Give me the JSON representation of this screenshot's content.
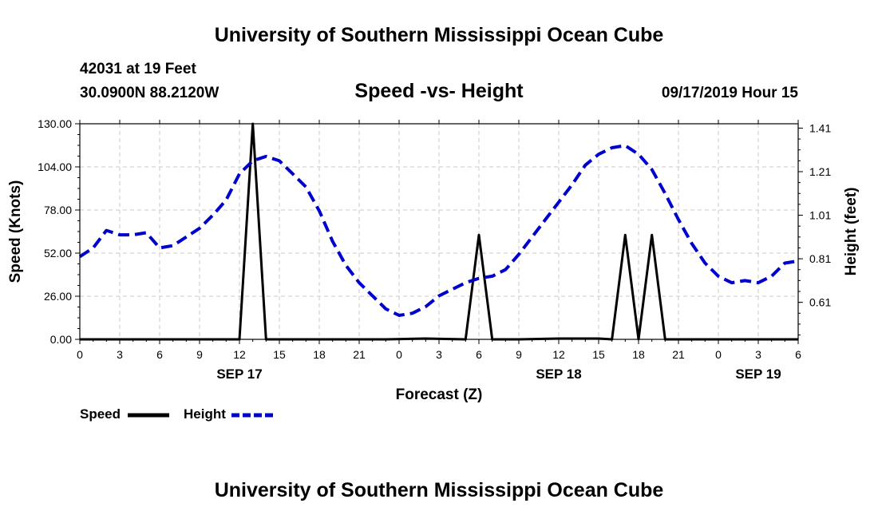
{
  "header": {
    "title": "University of Southern Mississippi Ocean Cube",
    "station": "42031 at 19 Feet",
    "location": "30.0900N 88.2120W",
    "chart_title": "Speed -vs- Height",
    "datetime": "09/17/2019 Hour 15"
  },
  "footer": {
    "title": "University of Southern Mississippi Ocean Cube"
  },
  "legend": {
    "speed_label": "Speed",
    "height_label": "Height"
  },
  "colors": {
    "speed": "#000000",
    "height": "#0000cc",
    "grid": "#c8c8c8"
  },
  "chart_data": {
    "type": "line",
    "title": "Speed -vs- Height",
    "xlabel": "Forecast (Z)",
    "ylabel": "Speed (Knots)",
    "y2label": "Height (feet)",
    "xlim": [
      0,
      54
    ],
    "ylim": [
      0,
      130
    ],
    "y2lim": [
      0.44,
      1.43
    ],
    "x_ticks": [
      0,
      3,
      6,
      9,
      12,
      15,
      18,
      21,
      24,
      27,
      30,
      33,
      36,
      39,
      42,
      45,
      48,
      51,
      54
    ],
    "x_tick_labels": [
      "0",
      "3",
      "6",
      "9",
      "12",
      "15",
      "18",
      "21",
      "0",
      "3",
      "6",
      "9",
      "12",
      "15",
      "18",
      "21",
      "0",
      "3",
      "6"
    ],
    "date_labels": [
      {
        "x": 12,
        "label": "SEP 17"
      },
      {
        "x": 36,
        "label": "SEP 18"
      },
      {
        "x": 51,
        "label": "SEP 19"
      }
    ],
    "y_ticks": [
      0,
      26,
      52,
      78,
      104,
      130
    ],
    "y_tick_labels": [
      "0.00",
      "26.00",
      "52.00",
      "78.00",
      "104.00",
      "130.00"
    ],
    "y2_ticks": [
      0.61,
      0.81,
      1.01,
      1.21,
      1.41
    ],
    "y2_tick_labels": [
      "0.61",
      "0.81",
      "1.01",
      "1.21",
      "1.41"
    ],
    "grid": true,
    "series": [
      {
        "name": "Speed",
        "axis": "left",
        "style": "solid",
        "x": [
          0,
          12,
          13,
          14,
          23,
          26,
          29,
          30,
          31,
          33,
          36,
          37,
          39,
          40,
          41,
          42,
          43,
          44,
          54
        ],
        "values": [
          0,
          0,
          130,
          0,
          0,
          0.5,
          0,
          63,
          0,
          0,
          0.5,
          0.5,
          0.5,
          0,
          63,
          0,
          63,
          0,
          0
        ]
      },
      {
        "name": "Height",
        "axis": "right",
        "style": "dashed",
        "x": [
          0,
          1,
          2,
          3,
          4,
          5,
          6,
          7,
          8,
          9,
          10,
          11,
          12,
          13,
          14,
          15,
          16,
          17,
          18,
          19,
          20,
          21,
          22,
          23,
          24,
          25,
          26,
          27,
          28,
          29,
          30,
          31,
          32,
          33,
          34,
          35,
          36,
          37,
          38,
          39,
          40,
          41,
          42,
          43,
          44,
          45,
          46,
          47,
          48,
          49,
          50,
          51,
          52,
          53,
          54
        ],
        "values": [
          0.82,
          0.86,
          0.94,
          0.92,
          0.92,
          0.93,
          0.86,
          0.87,
          0.91,
          0.95,
          1.01,
          1.08,
          1.2,
          1.26,
          1.28,
          1.26,
          1.2,
          1.14,
          1.03,
          0.89,
          0.78,
          0.7,
          0.64,
          0.58,
          0.55,
          0.56,
          0.59,
          0.64,
          0.67,
          0.7,
          0.72,
          0.73,
          0.76,
          0.83,
          0.91,
          0.99,
          1.07,
          1.15,
          1.24,
          1.29,
          1.32,
          1.33,
          1.29,
          1.22,
          1.11,
          0.99,
          0.88,
          0.79,
          0.73,
          0.7,
          0.71,
          0.7,
          0.73,
          0.79,
          0.8
        ]
      }
    ]
  }
}
